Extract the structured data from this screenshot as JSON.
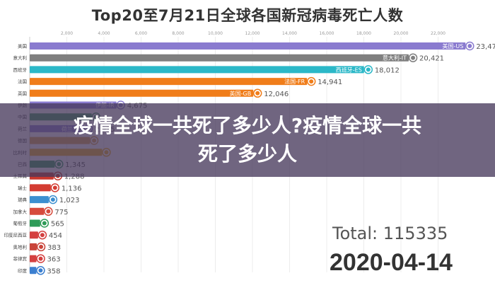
{
  "chart_data": {
    "type": "bar",
    "title": "Top20至7月21日全球各国新冠病毒死亡人数",
    "orientation": "horizontal",
    "x_ticks": [
      "2,000",
      "4,000",
      "6,000",
      "8,000",
      "10,000",
      "12,000",
      "14,000",
      "16,000",
      "18,000",
      "20,000",
      "22,000"
    ],
    "xlim": [
      0,
      24000
    ],
    "categories": [
      "美国",
      "意大利",
      "西班牙",
      "法国",
      "英国",
      "伊朗",
      "中国",
      "荷兰",
      "德国",
      "比利时",
      "巴西",
      "土耳其",
      "瑞士",
      "瑞典",
      "加拿大",
      "葡萄牙",
      "印度尼西亚",
      "奥地利",
      "菲律宾",
      "印度"
    ],
    "bar_tags": [
      "美国-US",
      "意大利-IT",
      "西班牙-ES",
      "法国-FR",
      "英国-GB",
      "伊朗-IR",
      "",
      "荷兰-NL",
      "",
      "",
      "",
      "",
      "",
      "",
      "",
      "",
      "",
      "",
      "",
      ""
    ],
    "values": [
      23479,
      20421,
      18012,
      14941,
      12046,
      4675,
      3341,
      2935,
      3242,
      3903,
      1345,
      1288,
      1136,
      1023,
      775,
      565,
      454,
      383,
      363,
      358
    ],
    "value_labels": [
      "23,479",
      "20,421",
      "18,012",
      "14,941",
      "12,046",
      "4,675",
      "",
      "2,935",
      "",
      "",
      "1,345",
      "1,288",
      "1,136",
      "1,023",
      "775",
      "565",
      "454",
      "383",
      "363",
      "358"
    ],
    "colors": [
      "#8a7bcf",
      "#7f7f7f",
      "#2bb8c8",
      "#f07d1a",
      "#f07d1a",
      "#8a7bcf",
      "#3c9b5e",
      "#8a7bcf",
      "#e0a24a",
      "#f0b31a",
      "#2e9b58",
      "#c8382e",
      "#d43c32",
      "#3b8fd0",
      "#d64a3c",
      "#2e9b58",
      "#d44040",
      "#c9443a",
      "#d44040",
      "#3b7fd0"
    ]
  },
  "overlay": {
    "line1": "疫情全球一共死了多少人?疫情全球一共",
    "line2": "死了多少人"
  },
  "summary": {
    "total": "Total: 115335",
    "date": "2020-04-14"
  }
}
